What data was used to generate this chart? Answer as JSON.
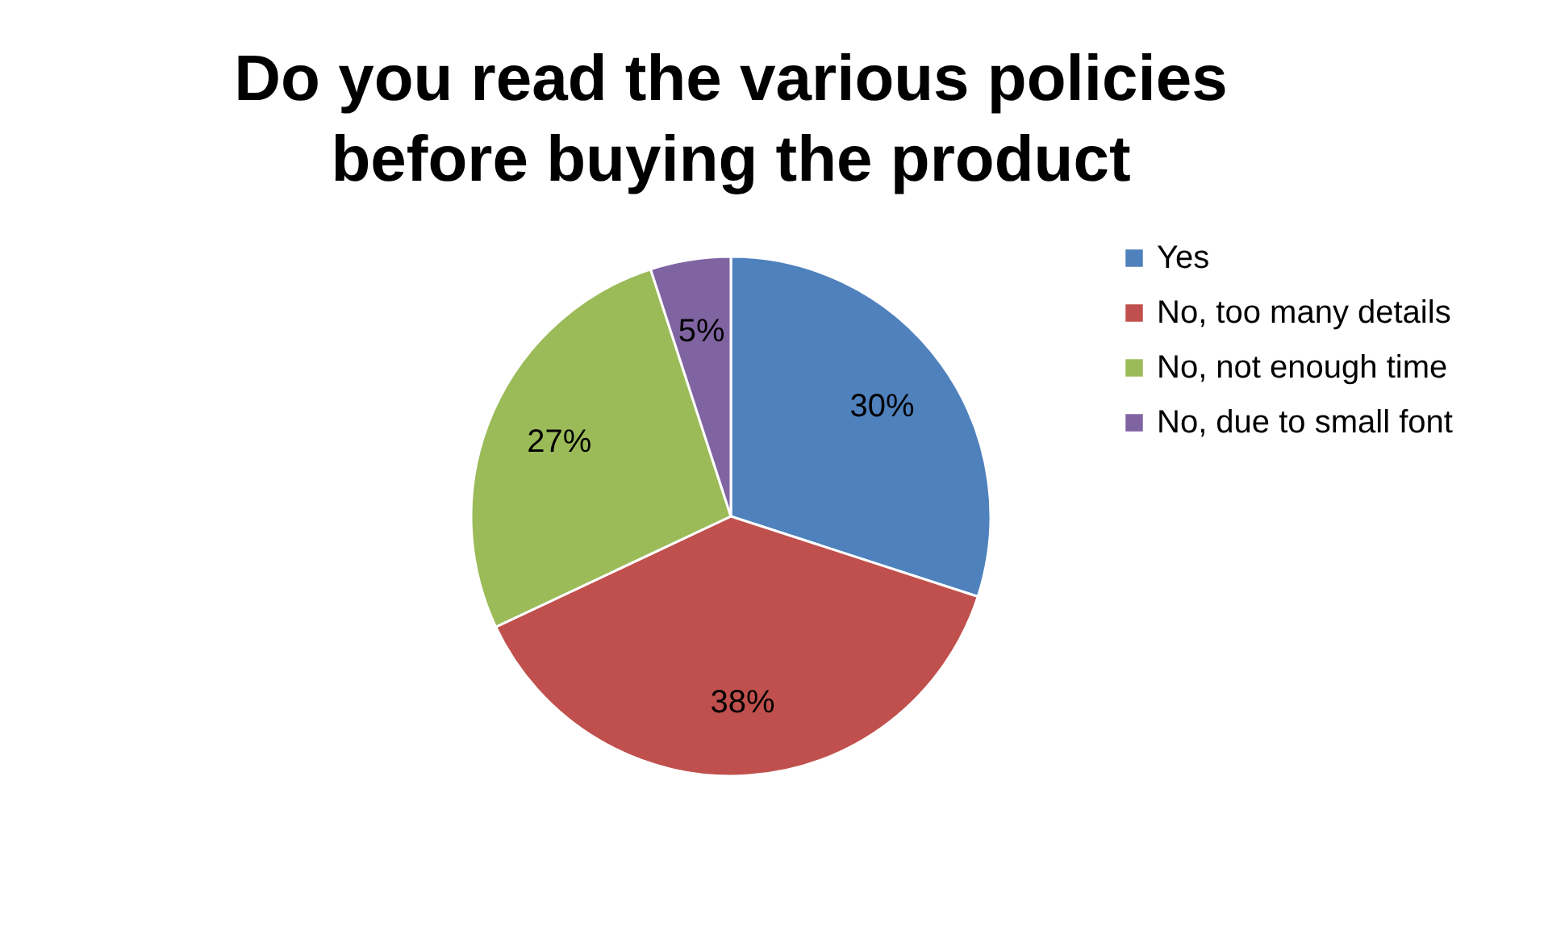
{
  "chart_data": {
    "type": "pie",
    "title": "Do you read the various policies before buying the product",
    "categories": [
      "Yes",
      "No, too many details",
      "No, not enough time",
      "No, due to small font"
    ],
    "values": [
      30,
      38,
      27,
      5
    ],
    "value_labels": [
      "30%",
      "38%",
      "27%",
      "5%"
    ],
    "colors": [
      "#4f81bd",
      "#c0504d",
      "#9bbb59",
      "#8064a2"
    ],
    "legend": "right"
  }
}
